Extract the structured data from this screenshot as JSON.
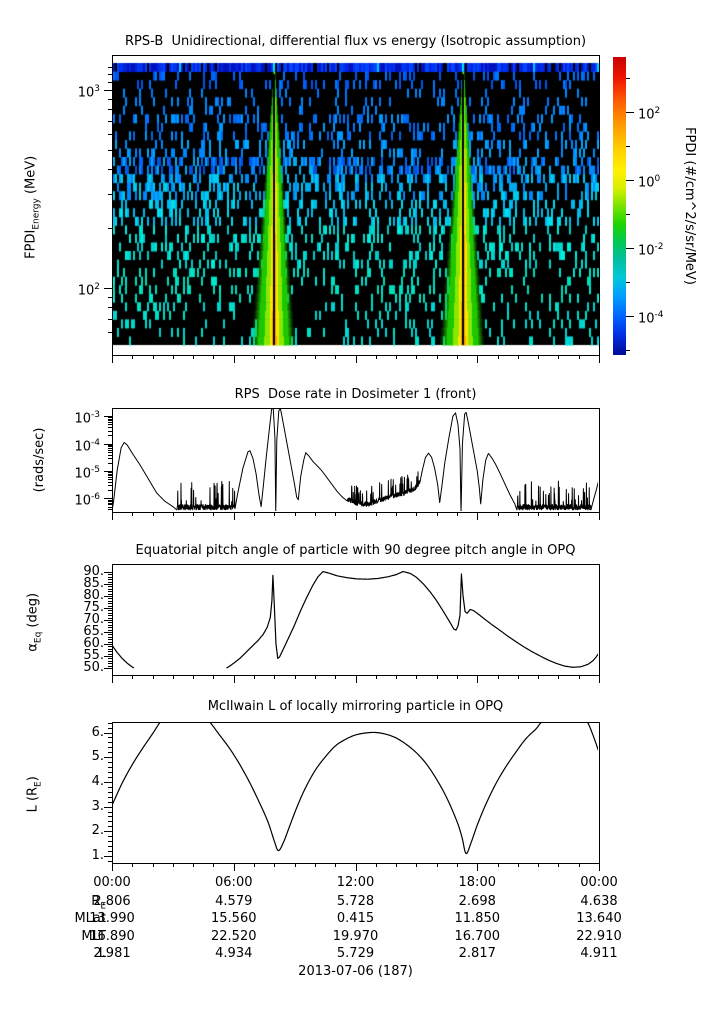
{
  "bottom_axis": {
    "time_labels": [
      "00:00",
      "06:00",
      "12:00",
      "18:00",
      "00:00"
    ],
    "tick_hours": [
      0,
      6,
      12,
      18,
      24
    ],
    "rows": [
      {
        "label_parts": [
          [
            "t",
            "R"
          ],
          [
            "sub",
            "E"
          ]
        ],
        "values": [
          "2.806",
          "4.579",
          "5.728",
          "2.698",
          "4.638"
        ]
      },
      {
        "label_parts": [
          [
            "t",
            "MLat"
          ]
        ],
        "values": [
          "13.990",
          "15.560",
          "0.415",
          "11.850",
          "13.640"
        ]
      },
      {
        "label_parts": [
          [
            "t",
            "MLT"
          ]
        ],
        "values": [
          "16.890",
          "22.520",
          "19.970",
          "16.700",
          "22.910"
        ]
      },
      {
        "label_parts": [
          [
            "t",
            "L"
          ]
        ],
        "values": [
          "2.981",
          "4.934",
          "5.729",
          "2.817",
          "4.911"
        ]
      }
    ],
    "date": "2013-07-06 (187)"
  },
  "chart_data": [
    {
      "id": "flux_spectrogram",
      "type": "heatmap",
      "title": "RPS-B  Unidirectional, differential flux vs energy (Isotropic assumption)",
      "ylabel_parts": [
        [
          "t",
          "FPDI"
        ],
        [
          "sub",
          "Energy"
        ],
        [
          "t",
          " (MeV)"
        ]
      ],
      "x_range_hours": [
        0,
        24
      ],
      "y_range_mev": [
        52,
        1370
      ],
      "y_axis_tick_exponents": [
        3,
        2
      ],
      "zlabel": "FPDI (#/cm^2/s/sr/MeV)",
      "z_tick_exponents": [
        2,
        0,
        -2,
        -4
      ],
      "z_minor_tick_exponents": [
        3,
        1,
        -1,
        -3,
        -5
      ],
      "z_range": [
        1e-05,
        3000
      ],
      "colorbar_gradient": [
        [
          0,
          "#c80000"
        ],
        [
          0.07,
          "#ee1500"
        ],
        [
          0.15,
          "#ff5e00"
        ],
        [
          0.23,
          "#ff9c00"
        ],
        [
          0.31,
          "#ffd000"
        ],
        [
          0.38,
          "#fff000"
        ],
        [
          0.44,
          "#d8f000"
        ],
        [
          0.5,
          "#7ae400"
        ],
        [
          0.56,
          "#1ed400"
        ],
        [
          0.62,
          "#00c853"
        ],
        [
          0.68,
          "#00bfa0"
        ],
        [
          0.74,
          "#00c8d8"
        ],
        [
          0.8,
          "#00a0ff"
        ],
        [
          0.87,
          "#0064ff"
        ],
        [
          0.93,
          "#0030e8"
        ],
        [
          1,
          "#000a96"
        ]
      ],
      "background_color": "#000000",
      "n_energy_rows": 33,
      "top_energy_band": {
        "palette": [
          "#0011bb",
          "#0033ee",
          "#0044ff",
          "#0022dd"
        ],
        "gap_color": "#000000",
        "gap_prob": 0.1,
        "cyan_prob": 0.03,
        "cyan_color": "#00ccff"
      },
      "speckle_bands": [
        {
          "rows": [
            1,
            2
          ],
          "density": 0.2,
          "colors": [
            "#0066ff",
            "#0077ff",
            "#0055ee"
          ]
        },
        {
          "rows": [
            3,
            5
          ],
          "density": 0.15,
          "colors": [
            "#0077ff",
            "#0088ff"
          ]
        },
        {
          "rows": [
            6,
            8
          ],
          "density": 0.26,
          "colors": [
            "#0077ff",
            "#0099ff",
            "#0066ee"
          ]
        },
        {
          "rows": [
            9,
            10
          ],
          "density": 0.2,
          "colors": [
            "#0088ff",
            "#00aaff"
          ]
        },
        {
          "rows": [
            11,
            12
          ],
          "density": 0.48,
          "colors": [
            "#0066ff",
            "#0088ff",
            "#00aaee",
            "#0055dd"
          ]
        },
        {
          "rows": [
            13,
            15
          ],
          "density": 0.4,
          "colors": [
            "#0088ff",
            "#00aaee",
            "#00ccee"
          ]
        },
        {
          "rows": [
            16,
            18
          ],
          "density": 0.28,
          "colors": [
            "#00bbee",
            "#00ddee"
          ]
        },
        {
          "rows": [
            19,
            23
          ],
          "density": 0.24,
          "colors": [
            "#00ddcc",
            "#00eedd",
            "#00cccc"
          ]
        },
        {
          "rows": [
            24,
            27
          ],
          "density": 0.17,
          "colors": [
            "#00e5cc",
            "#00ddbb"
          ]
        },
        {
          "rows": [
            28,
            32
          ],
          "density": 0.13,
          "colors": [
            "#00e0c8",
            "#00d5d5"
          ]
        }
      ],
      "flux_events": [
        {
          "center_hour": 8.0,
          "bottom_halfwidth_hours": 1.05,
          "colors": {
            "outer": "#1ec800",
            "mid": "#8ae800",
            "inner": "#ffe400",
            "core": "#ffaa00"
          },
          "center_gap_color": "#000000"
        },
        {
          "center_hour": 17.3,
          "bottom_halfwidth_hours": 1.08,
          "colors": {
            "outer": "#1ec800",
            "mid": "#8ae800",
            "inner": "#ffe400",
            "core": "#ffaa00"
          },
          "center_gap_color": "#000000"
        }
      ]
    },
    {
      "id": "dose_rate",
      "type": "line",
      "title": "RPS  Dose rate in Dosimeter 1 (front)",
      "ylabel": "(rads/sec)",
      "yscale": "log",
      "ylim_log10": [
        -6.5,
        -2.7
      ],
      "y_tick_exponents": [
        -3,
        -4,
        -5,
        -6
      ],
      "x_range_hours": [
        0,
        24
      ],
      "noise_floor_log10": -6.42,
      "noise_segments": [
        [
          3.2,
          6.05,
          0.2,
          0.75,
          0.1
        ],
        [
          11.6,
          15.15,
          0.18,
          0.45,
          0.12
        ],
        [
          19.95,
          23.6,
          0.2,
          0.75,
          0.1
        ]
      ],
      "anchors_t_log10": [
        [
          0,
          -6.45
        ],
        [
          0.08,
          -6.1
        ],
        [
          0.25,
          -5.0
        ],
        [
          0.45,
          -4.15
        ],
        [
          0.6,
          -3.96
        ],
        [
          0.75,
          -4.05
        ],
        [
          1.0,
          -4.35
        ],
        [
          1.4,
          -4.8
        ],
        [
          1.8,
          -5.3
        ],
        [
          2.2,
          -5.8
        ],
        [
          2.6,
          -6.1
        ],
        [
          3.0,
          -6.3
        ],
        [
          3.2,
          -6.42
        ],
        [
          6.05,
          -6.42
        ],
        [
          6.2,
          -5.8
        ],
        [
          6.45,
          -4.9
        ],
        [
          6.7,
          -4.3
        ],
        [
          6.8,
          -4.26
        ],
        [
          6.95,
          -4.55
        ],
        [
          7.1,
          -5.1
        ],
        [
          7.25,
          -5.9
        ],
        [
          7.35,
          -6.3
        ],
        [
          7.45,
          -5.6
        ],
        [
          7.6,
          -4.5
        ],
        [
          7.75,
          -3.5
        ],
        [
          7.88,
          -2.66
        ],
        [
          7.95,
          -2.75
        ],
        [
          8.03,
          -3.8
        ],
        [
          8.07,
          -6.6
        ],
        [
          8.12,
          -3.9
        ],
        [
          8.22,
          -2.8
        ],
        [
          8.3,
          -2.72
        ],
        [
          8.4,
          -3.1
        ],
        [
          8.55,
          -3.7
        ],
        [
          8.7,
          -4.3
        ],
        [
          8.85,
          -4.9
        ],
        [
          9.0,
          -5.5
        ],
        [
          9.1,
          -5.95
        ],
        [
          9.18,
          -6.05
        ],
        [
          9.3,
          -5.2
        ],
        [
          9.45,
          -4.6
        ],
        [
          9.55,
          -4.33
        ],
        [
          9.7,
          -4.45
        ],
        [
          9.9,
          -4.65
        ],
        [
          10.1,
          -4.8
        ],
        [
          10.35,
          -5.0
        ],
        [
          10.6,
          -5.25
        ],
        [
          10.85,
          -5.5
        ],
        [
          11.1,
          -5.75
        ],
        [
          11.35,
          -5.95
        ],
        [
          11.6,
          -6.1
        ],
        [
          12.0,
          -6.25
        ],
        [
          12.6,
          -6.3
        ],
        [
          13.2,
          -6.15
        ],
        [
          13.8,
          -6.0
        ],
        [
          14.4,
          -5.9
        ],
        [
          14.9,
          -5.75
        ],
        [
          15.15,
          -5.5
        ],
        [
          15.3,
          -4.95
        ],
        [
          15.45,
          -4.5
        ],
        [
          15.6,
          -4.35
        ],
        [
          15.75,
          -4.5
        ],
        [
          15.9,
          -4.9
        ],
        [
          16.05,
          -5.5
        ],
        [
          16.15,
          -6.15
        ],
        [
          16.25,
          -5.6
        ],
        [
          16.4,
          -4.7
        ],
        [
          16.6,
          -3.8
        ],
        [
          16.8,
          -3.0
        ],
        [
          16.93,
          -2.88
        ],
        [
          17.05,
          -3.3
        ],
        [
          17.15,
          -4.2
        ],
        [
          17.2,
          -6.6
        ],
        [
          17.27,
          -4.0
        ],
        [
          17.38,
          -2.92
        ],
        [
          17.45,
          -2.86
        ],
        [
          17.55,
          -3.2
        ],
        [
          17.7,
          -3.8
        ],
        [
          17.85,
          -4.4
        ],
        [
          18.0,
          -5.0
        ],
        [
          18.1,
          -5.6
        ],
        [
          18.17,
          -6.2
        ],
        [
          18.28,
          -5.3
        ],
        [
          18.42,
          -4.6
        ],
        [
          18.55,
          -4.36
        ],
        [
          18.7,
          -4.5
        ],
        [
          18.9,
          -4.75
        ],
        [
          19.1,
          -5.05
        ],
        [
          19.35,
          -5.45
        ],
        [
          19.6,
          -5.85
        ],
        [
          19.85,
          -6.2
        ],
        [
          19.95,
          -6.42
        ],
        [
          23.6,
          -6.42
        ],
        [
          23.75,
          -6.0
        ],
        [
          23.9,
          -5.6
        ],
        [
          24,
          -5.3
        ]
      ]
    },
    {
      "id": "equatorial_pitch_angle",
      "type": "line",
      "title": "Equatorial pitch angle of particle with 90 degree pitch angle in OPQ",
      "ylabel_parts": [
        [
          "t",
          "α"
        ],
        [
          "sub",
          "Eq"
        ],
        [
          "t",
          " (deg)"
        ]
      ],
      "ylim": [
        50,
        90
      ],
      "y_tick_values": [
        50,
        55,
        60,
        65,
        70,
        75,
        80,
        85,
        90
      ],
      "y_tick_labels": [
        "50.",
        "55.",
        "60.",
        "65.",
        "70.",
        "75.",
        "80.",
        "85.",
        "90."
      ],
      "x_range_hours": [
        0,
        24
      ],
      "points_t_deg": [
        [
          0,
          59.5
        ],
        [
          0.25,
          56.5
        ],
        [
          0.5,
          54
        ],
        [
          0.75,
          52
        ],
        [
          1.0,
          50.4
        ],
        [
          1.15,
          49.6
        ],
        [
          5.55,
          49.6
        ],
        [
          5.75,
          50.5
        ],
        [
          6.0,
          52
        ],
        [
          6.3,
          54
        ],
        [
          6.6,
          56.5
        ],
        [
          6.9,
          59
        ],
        [
          7.2,
          61.5
        ],
        [
          7.45,
          64
        ],
        [
          7.65,
          67
        ],
        [
          7.8,
          71
        ],
        [
          7.88,
          78
        ],
        [
          7.93,
          88.6
        ],
        [
          8.0,
          76
        ],
        [
          8.08,
          60
        ],
        [
          8.17,
          54
        ],
        [
          8.25,
          54.5
        ],
        [
          8.45,
          58
        ],
        [
          8.7,
          62.5
        ],
        [
          9.0,
          68
        ],
        [
          9.3,
          74
        ],
        [
          9.6,
          79.5
        ],
        [
          9.9,
          84.5
        ],
        [
          10.15,
          88
        ],
        [
          10.4,
          90.2
        ],
        [
          10.7,
          89.5
        ],
        [
          11.1,
          88.4
        ],
        [
          11.6,
          87.6
        ],
        [
          12.1,
          87.1
        ],
        [
          12.6,
          87.0
        ],
        [
          13.1,
          87.3
        ],
        [
          13.6,
          88
        ],
        [
          14.0,
          88.9
        ],
        [
          14.35,
          90.2
        ],
        [
          14.7,
          89.4
        ],
        [
          15.0,
          87.8
        ],
        [
          15.35,
          85
        ],
        [
          15.7,
          81.5
        ],
        [
          16.0,
          78
        ],
        [
          16.3,
          74
        ],
        [
          16.6,
          69.8
        ],
        [
          16.85,
          66.2
        ],
        [
          16.95,
          65.8
        ],
        [
          17.05,
          67.5
        ],
        [
          17.15,
          72
        ],
        [
          17.22,
          89.2
        ],
        [
          17.3,
          80
        ],
        [
          17.4,
          73.5
        ],
        [
          17.5,
          72.8
        ],
        [
          17.65,
          74.4
        ],
        [
          17.8,
          74
        ],
        [
          18.0,
          72.8
        ],
        [
          18.3,
          70.8
        ],
        [
          18.7,
          68.2
        ],
        [
          19.1,
          65.8
        ],
        [
          19.5,
          63.3
        ],
        [
          19.9,
          61
        ],
        [
          20.3,
          58.8
        ],
        [
          20.7,
          56.8
        ],
        [
          21.1,
          55
        ],
        [
          21.5,
          53.3
        ],
        [
          21.9,
          51.9
        ],
        [
          22.3,
          50.8
        ],
        [
          22.7,
          50.3
        ],
        [
          23.1,
          50.5
        ],
        [
          23.45,
          51.5
        ],
        [
          23.7,
          53
        ],
        [
          23.85,
          54.5
        ],
        [
          24,
          56.3
        ]
      ]
    },
    {
      "id": "mcilwain_L",
      "type": "line",
      "title": "McIlwain L of locally mirroring particle in OPQ",
      "ylabel_parts": [
        [
          "t",
          "L (R"
        ],
        [
          "sub",
          "E"
        ],
        [
          "t",
          ")"
        ]
      ],
      "ylim": [
        1,
        6.45
      ],
      "y_tick_values": [
        1,
        2,
        3,
        4,
        5,
        6
      ],
      "y_tick_labels": [
        "1.",
        "2.",
        "3.",
        "4.",
        "5.",
        "6."
      ],
      "x_range_hours": [
        0,
        24
      ],
      "points_t_l": [
        [
          0,
          3.05
        ],
        [
          0.5,
          3.95
        ],
        [
          1.0,
          4.7
        ],
        [
          1.5,
          5.35
        ],
        [
          2.0,
          5.95
        ],
        [
          2.4,
          6.45
        ],
        [
          3.0,
          7.05
        ],
        [
          3.6,
          7.25
        ],
        [
          4.2,
          7.05
        ],
        [
          4.8,
          6.45
        ],
        [
          5.3,
          5.9
        ],
        [
          5.8,
          5.35
        ],
        [
          6.3,
          4.7
        ],
        [
          6.8,
          3.95
        ],
        [
          7.3,
          3.1
        ],
        [
          7.7,
          2.35
        ],
        [
          8.0,
          1.6
        ],
        [
          8.2,
          1.22
        ],
        [
          8.45,
          1.55
        ],
        [
          8.75,
          2.2
        ],
        [
          9.1,
          2.95
        ],
        [
          9.5,
          3.7
        ],
        [
          10.0,
          4.45
        ],
        [
          10.5,
          5.0
        ],
        [
          11.0,
          5.45
        ],
        [
          11.5,
          5.72
        ],
        [
          12.0,
          5.9
        ],
        [
          12.5,
          5.98
        ],
        [
          13.0,
          6.0
        ],
        [
          13.5,
          5.93
        ],
        [
          14.0,
          5.78
        ],
        [
          14.5,
          5.52
        ],
        [
          15.0,
          5.18
        ],
        [
          15.5,
          4.72
        ],
        [
          16.0,
          4.1
        ],
        [
          16.5,
          3.35
        ],
        [
          17.0,
          2.4
        ],
        [
          17.25,
          1.75
        ],
        [
          17.45,
          1.1
        ],
        [
          17.7,
          1.55
        ],
        [
          18.0,
          2.25
        ],
        [
          18.4,
          3.05
        ],
        [
          18.9,
          3.9
        ],
        [
          19.4,
          4.6
        ],
        [
          19.9,
          5.2
        ],
        [
          20.4,
          5.75
        ],
        [
          20.9,
          6.15
        ],
        [
          21.2,
          6.45
        ],
        [
          21.9,
          6.9
        ],
        [
          22.4,
          7.0
        ],
        [
          22.9,
          6.8
        ],
        [
          23.4,
          6.45
        ],
        [
          23.7,
          5.9
        ],
        [
          24,
          5.2
        ]
      ]
    }
  ]
}
